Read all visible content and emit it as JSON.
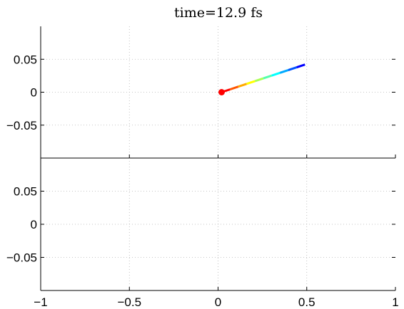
{
  "chart_data": [
    {
      "panel": "top",
      "type": "line",
      "title": "time=12.9 fs",
      "xlabel": "",
      "ylabel": "",
      "xlim": [
        -1,
        1
      ],
      "ylim": [
        -0.1,
        0.1
      ],
      "xticks": [],
      "yticks": [
        -0.05,
        0,
        0.05
      ],
      "ytick_labels": [
        "−0.05",
        "0",
        "0.05"
      ],
      "grid": true,
      "colormap": [
        "#ff0000",
        "#ff5500",
        "#ffaa00",
        "#ffff00",
        "#aaff55",
        "#55ffaa",
        "#00ffff",
        "#00aaff",
        "#0055ff",
        "#0000ff",
        "#00008b"
      ],
      "series": [
        {
          "x": [
            0.02,
            0.067,
            0.114,
            0.161,
            0.208,
            0.255,
            0.302,
            0.349,
            0.396,
            0.443,
            0.49
          ],
          "y": [
            0.0,
            0.0042,
            0.0084,
            0.0126,
            0.0168,
            0.021,
            0.0252,
            0.0294,
            0.0336,
            0.0378,
            0.042
          ]
        }
      ],
      "marker": {
        "x": 0.02,
        "y": 0.0,
        "color": "#ff0000"
      }
    },
    {
      "panel": "bottom",
      "type": "line",
      "title": "",
      "xlabel": "",
      "ylabel": "",
      "xlim": [
        -1,
        1
      ],
      "ylim": [
        -0.1,
        0.1
      ],
      "xticks": [
        -1,
        -0.5,
        0,
        0.5,
        1
      ],
      "xtick_labels": [
        "−1",
        "−0.5",
        "0",
        "0.5",
        "1"
      ],
      "yticks": [
        -0.05,
        0,
        0.05
      ],
      "ytick_labels": [
        "−0.05",
        "0",
        "0.05"
      ],
      "grid": true,
      "series": []
    }
  ]
}
